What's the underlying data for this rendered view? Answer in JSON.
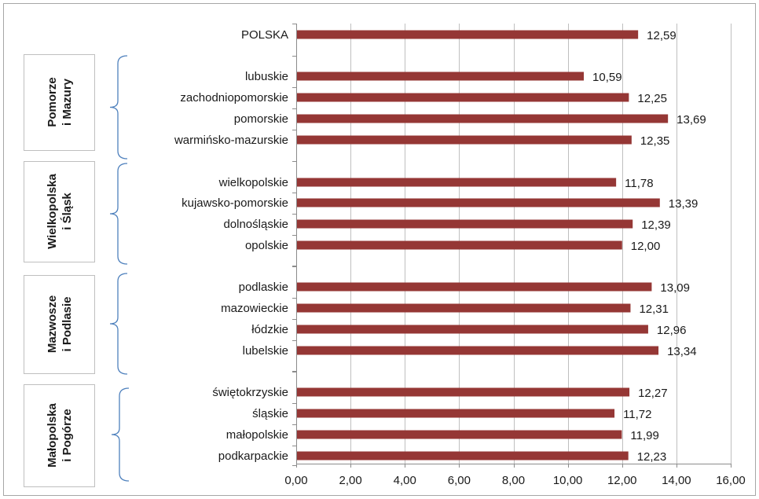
{
  "chart_data": {
    "type": "bar",
    "orientation": "horizontal",
    "categories": [
      "POLSKA",
      "lubuskie",
      "zachodniopomorskie",
      "pomorskie",
      "warmińsko-mazurskie",
      "wielkopolskie",
      "kujawsko-pomorskie",
      "dolnośląskie",
      "opolskie",
      "podlaskie",
      "mazowieckie",
      "łódzkie",
      "lubelskie",
      "świętokrzyskie",
      "śląskie",
      "małopolskie",
      "podkarpackie"
    ],
    "values": [
      12.59,
      10.59,
      12.25,
      13.69,
      12.35,
      11.78,
      13.39,
      12.39,
      12.0,
      13.09,
      12.31,
      12.96,
      13.34,
      12.27,
      11.72,
      11.99,
      12.23
    ],
    "value_labels": [
      "12,59",
      "10,59",
      "12,25",
      "13,69",
      "12,35",
      "11,78",
      "13,39",
      "12,39",
      "12,00",
      "13,09",
      "12,31",
      "12,96",
      "13,34",
      "12,27",
      "11,72",
      "11,99",
      "12,23"
    ],
    "groups": [
      {
        "label_lines": [
          "Pomorze",
          "i Mazury"
        ],
        "categories": [
          "lubuskie",
          "zachodniopomorskie",
          "pomorskie",
          "warmińsko-mazurskie"
        ]
      },
      {
        "label_lines": [
          "Wielkopolska",
          "i Śląsk"
        ],
        "categories": [
          "wielkopolskie",
          "kujawsko-pomorskie",
          "dolnośląskie",
          "opolskie"
        ]
      },
      {
        "label_lines": [
          "Mazwosze",
          "i Podlasie"
        ],
        "categories": [
          "podlaskie",
          "mazowieckie",
          "łódzkie",
          "lubelskie"
        ]
      },
      {
        "label_lines": [
          "Małopolska",
          "i Pogórze"
        ],
        "categories": [
          "świętokrzyskie",
          "śląskie",
          "małopolskie",
          "podkarpackie"
        ]
      }
    ],
    "xlim": [
      0,
      16
    ],
    "x_ticks": [
      0,
      2,
      4,
      6,
      8,
      10,
      12,
      14,
      16
    ],
    "x_tick_labels": [
      "0,00",
      "2,00",
      "4,00",
      "6,00",
      "8,00",
      "10,00",
      "12,00",
      "14,00",
      "16,00"
    ],
    "grid": "vertical",
    "legend": "none",
    "colors": {
      "bar": "#953735",
      "grid": "#bfbfbf",
      "brace": "#4f81bd",
      "box_border": "#bfbfbf",
      "frame": "#a6a6a6"
    },
    "title": "",
    "xlabel": "",
    "ylabel": ""
  }
}
